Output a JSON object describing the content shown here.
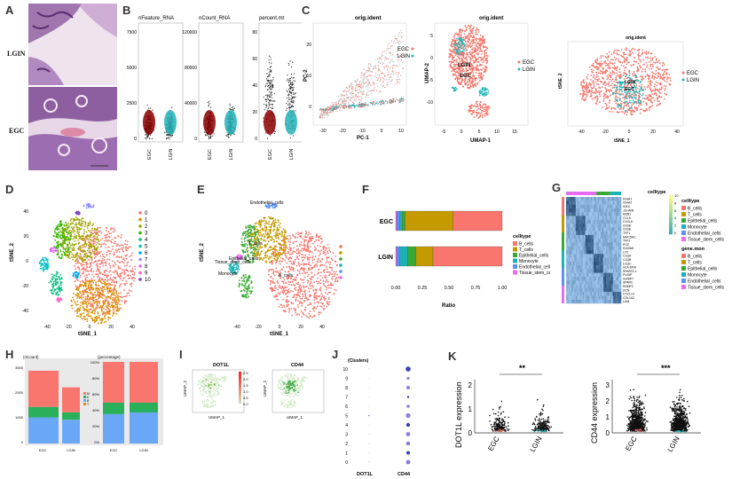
{
  "colors": {
    "egc": "#f2766b",
    "lgin": "#23b3b8",
    "B_cells": "#f8766d",
    "T_cells": "#c49a00",
    "Epithelial_cells": "#39a935",
    "Monocyte": "#19b3b6",
    "Endothelial_cells": "#5b8ff9",
    "Tissue_stem_cells": "#e76bf3",
    "expr_low": "#cfe9c3",
    "expr_high": "#d62728"
  },
  "panelA": {
    "label": "A",
    "rows": [
      "LGIN",
      "EGC"
    ]
  },
  "panelB": {
    "label": "B",
    "plots": [
      {
        "title": "nFeature_RNA",
        "ticks": [
          "7500",
          "5000",
          "2500",
          "0"
        ],
        "groups": [
          "EGC",
          "LGIN"
        ]
      },
      {
        "title": "nCount_RNA",
        "ticks": [
          "120000",
          "80000",
          "40000",
          "0"
        ],
        "groups": [
          "EGC",
          "LGIN"
        ]
      },
      {
        "title": "percent.mt",
        "ticks": [
          "80",
          "60",
          "40",
          "20",
          "0"
        ],
        "groups": [
          "EGC",
          "LGIN"
        ]
      }
    ]
  },
  "panelC": {
    "label": "C",
    "pca": {
      "title": "orig.ident",
      "xlabel": "PC-1",
      "ylabel": "PC-2",
      "xticks": [
        "-30",
        "-20",
        "-10",
        "0",
        "10"
      ],
      "yticks": [
        "20",
        "10",
        "0"
      ]
    },
    "umap": {
      "title": "orig.ident",
      "xlabel": "UMAP-1",
      "ylabel": "UMAP-2",
      "xticks": [
        "-5",
        "0",
        "5",
        "10",
        "15"
      ],
      "yticks": [
        "5",
        "0",
        "-5",
        "-10"
      ],
      "labels": [
        "LGIN",
        "EGC"
      ]
    },
    "tsne": {
      "title": "orig.ident",
      "xlabel": "tSNE_1",
      "ylabel": "tSNE_2",
      "xticks": [
        "-40",
        "-20",
        "0",
        "20",
        "40"
      ],
      "labels": [
        "LGIN",
        "EGC"
      ]
    },
    "legend": [
      "EGC",
      "LGIN"
    ]
  },
  "panelD": {
    "label": "D",
    "xlabel": "tSNE_1",
    "ylabel": "tSNE_2",
    "xticks": [
      "-40",
      "-20",
      "0",
      "20",
      "40"
    ],
    "yticks": [
      "40",
      "20",
      "0",
      "-20",
      "-40"
    ],
    "clusters": [
      "0",
      "1",
      "2",
      "3",
      "4",
      "5",
      "6",
      "7",
      "8",
      "9",
      "10"
    ],
    "cluster_colors": [
      "#f8766d",
      "#d89000",
      "#a3a500",
      "#39b600",
      "#00bf7d",
      "#00bfc4",
      "#00b0f6",
      "#9590ff",
      "#e76bf3",
      "#ff62bc",
      "#7f3fbf"
    ]
  },
  "panelE": {
    "label": "E",
    "xlabel": "tSNE_1",
    "ylabel": "tSNE_2",
    "xticks": [
      "-40",
      "-20",
      "0",
      "20",
      "40"
    ],
    "legend": [
      "B_cells",
      "T_cells",
      "Epithelial_cells",
      "Monocyte",
      "Endothelial_cells",
      "Tissue_stem_cells"
    ],
    "onplot": {
      "endo": "Endothelial_cells",
      "tstem": "Tissue_stem_cells",
      "mono": "Monocyte",
      "epi": "Epithelial_cells",
      "tc": "T_cells",
      "bc": "B_cells"
    }
  },
  "panelF": {
    "label": "F",
    "xlabel": "Ratio",
    "xticks": [
      "0.00",
      "0.25",
      "0.50",
      "0.75",
      "1.00"
    ],
    "legend_title": "celltype",
    "legend": [
      "B_cells",
      "T_cells",
      "Epithelial_cells",
      "Monocyte",
      "Endothelial_cells",
      "Tissue_stem_cells"
    ],
    "bars": [
      {
        "group": "EGC",
        "values": {
          "Tissue_stem_cells": 0.01,
          "Endothelial_cells": 0.03,
          "Monocyte": 0.02,
          "Epithelial_cells": 0.03,
          "T_cells": 0.45,
          "B_cells": 0.46
        }
      },
      {
        "group": "LGIN",
        "values": {
          "Tissue_stem_cells": 0.01,
          "Endothelial_cells": 0.03,
          "Monocyte": 0.07,
          "Epithelial_cells": 0.08,
          "T_cells": 0.16,
          "B_cells": 0.65
        }
      }
    ]
  },
  "panelG": {
    "label": "G",
    "legend_title1": "celltype",
    "legend_title2": "gene.mon",
    "scale_ticks": [
      "10",
      "8",
      "6",
      "4",
      "2",
      "0"
    ],
    "legend": [
      "B_cells",
      "T_cells",
      "Epithelial_cells",
      "Monocyte",
      "Endothelial_cells",
      "Tissue_stem_cells"
    ],
    "genes": [
      "IGHA1",
      "IGHA2",
      "IGKC",
      "JCHAIN",
      "MZB1",
      "CCL5",
      "CXCL8",
      "CD3E",
      "CD3D",
      "TFF1",
      "MUC5AC",
      "TFF2",
      "PGC",
      "S100A8",
      "LYZ",
      "C1QA",
      "C1QB",
      "C1QC",
      "HLA-DRA",
      "SPARCL1",
      "PLVAP",
      "IGFBP7",
      "SPARC",
      "RAMP2",
      "DCN",
      "CXCL14",
      "COL1A2",
      "LUM"
    ]
  },
  "panelH": {
    "label": "H",
    "left_title": "(nCount)",
    "right_title": "(percentage)",
    "yticks_left": [
      "3000",
      "2000",
      "1000",
      "0"
    ],
    "yticks_right": [
      "100%",
      "80%",
      "60%",
      "40%",
      "20%",
      "0%"
    ],
    "groups": [
      "EGC",
      "LGIN"
    ],
    "legend": [
      "M",
      "E",
      "B",
      "T"
    ]
  },
  "panelI": {
    "label": "I",
    "genes": [
      "DOT1L",
      "CD44"
    ],
    "xlabel": "UMAP_1",
    "ylabel": "UMAP_2",
    "scale": [
      "2.5",
      "2.0",
      "1.5",
      "1.0",
      "0.5",
      "0.0"
    ]
  },
  "panelJ": {
    "label": "J",
    "ytitle": "(Clusters)",
    "clusters": [
      "10",
      "9",
      "8",
      "7",
      "6",
      "5",
      "4",
      "3",
      "2",
      "1",
      "0"
    ],
    "genes": [
      "DOT1L",
      "CD44"
    ]
  },
  "panelK": {
    "label": "K",
    "dot1l": {
      "ylabel": "DOT1L expression",
      "yticks": [
        "2",
        "1",
        "0"
      ],
      "groups": [
        "EGC",
        "LGIN"
      ],
      "sig": "**"
    },
    "cd44": {
      "ylabel": "CD44 expression",
      "yticks": [
        "3",
        "2",
        "1",
        "0"
      ],
      "groups": [
        "EGC",
        "LGIN"
      ],
      "sig": "***"
    }
  }
}
